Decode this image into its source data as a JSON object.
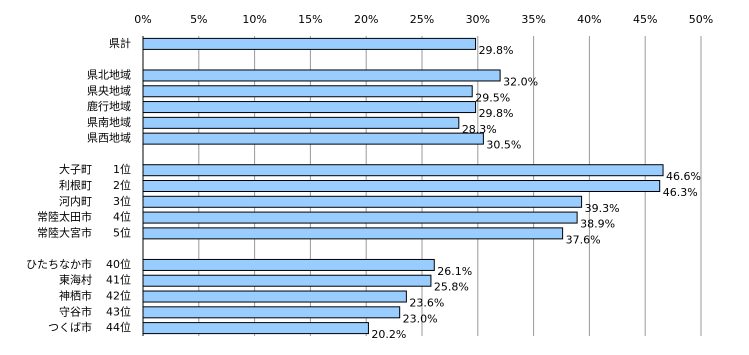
{
  "chart_data": {
    "type": "hbar",
    "categories": [
      "県計",
      null,
      "県北地域",
      "県央地域",
      "鹿行地域",
      "県南地域",
      "県西地域",
      null,
      "大子町",
      "利根町",
      "河内町",
      "常陸太田市",
      "常陸大宮市",
      null,
      "ひたちなか市",
      "東海村",
      "神栖市",
      "守谷市",
      "つくば市"
    ],
    "ranks": [
      null,
      null,
      null,
      null,
      null,
      null,
      null,
      null,
      "1位",
      "2位",
      "3位",
      "4位",
      "5位",
      null,
      "40位",
      "41位",
      "42位",
      "43位",
      "44位"
    ],
    "values": [
      29.8,
      null,
      32.0,
      29.5,
      29.8,
      28.3,
      30.5,
      null,
      46.6,
      46.3,
      39.3,
      38.9,
      37.6,
      null,
      26.1,
      25.8,
      23.6,
      23.0,
      20.2
    ],
    "value_labels": [
      "29.8%",
      null,
      "32.0%",
      "29.5%",
      "29.8%",
      "28.3%",
      "30.5%",
      null,
      "46.6%",
      "46.3%",
      "39.3%",
      "38.9%",
      "37.6%",
      null,
      "26.1%",
      "25.8%",
      "23.6%",
      "23.0%",
      "20.2%"
    ],
    "color": "#99ccff",
    "xlim": [
      0,
      50
    ],
    "xticks": [
      {
        "value": 0,
        "label": "0%"
      },
      {
        "value": 5,
        "label": "5%"
      },
      {
        "value": 10,
        "label": "10%"
      },
      {
        "value": 15,
        "label": "15%"
      },
      {
        "value": 20,
        "label": "20%"
      },
      {
        "value": 25,
        "label": "25%"
      },
      {
        "value": 30,
        "label": "30%"
      },
      {
        "value": 35,
        "label": "35%"
      },
      {
        "value": 40,
        "label": "40%"
      },
      {
        "value": 45,
        "label": "45%"
      },
      {
        "value": 50,
        "label": "50%"
      }
    ],
    "grid": true
  }
}
